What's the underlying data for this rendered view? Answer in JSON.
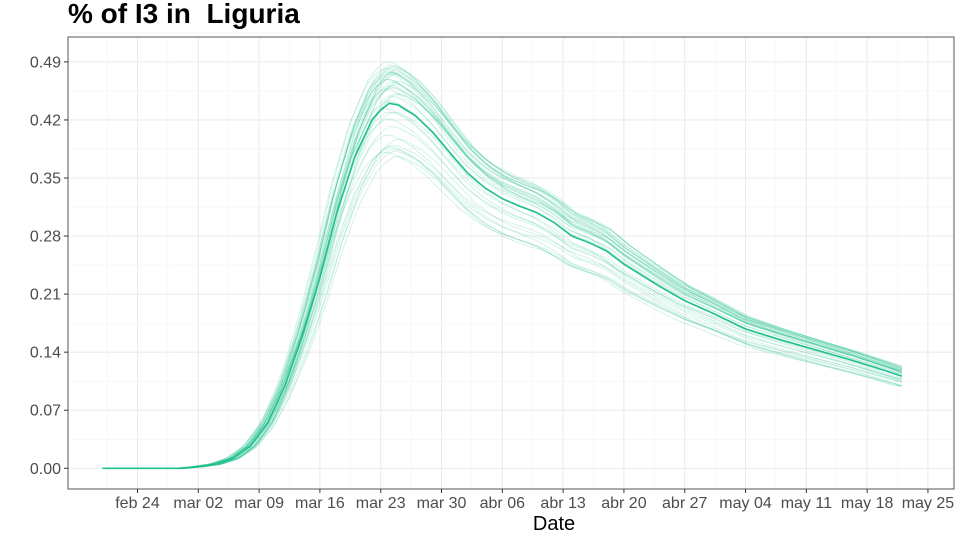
{
  "chart_data": {
    "type": "line",
    "title": "% of I3 in  Liguria",
    "xlabel": "Date",
    "ylabel": "",
    "x_tick_labels": [
      "feb 24",
      "mar 02",
      "mar 09",
      "mar 16",
      "mar 23",
      "mar 30",
      "abr 06",
      "abr 13",
      "abr 20",
      "abr 27",
      "may 04",
      "may 11",
      "may 18",
      "may 25"
    ],
    "x_tick_dates": [
      "2020-02-24",
      "2020-03-02",
      "2020-03-09",
      "2020-03-16",
      "2020-03-23",
      "2020-03-30",
      "2020-04-06",
      "2020-04-13",
      "2020-04-20",
      "2020-04-27",
      "2020-05-04",
      "2020-05-11",
      "2020-05-18",
      "2020-05-25"
    ],
    "y_tick_labels": [
      "0.00",
      "0.07",
      "0.14",
      "0.21",
      "0.28",
      "0.35",
      "0.42",
      "0.49"
    ],
    "xlim": [
      "2020-02-16",
      "2020-05-28"
    ],
    "ylim": [
      -0.025,
      0.52
    ],
    "grid": true,
    "legend": "none",
    "series_color": "#1fbf8f",
    "ensemble_runs": 40,
    "series": [
      {
        "x": [
          "2020-02-20",
          "2020-02-25",
          "2020-02-29",
          "2020-03-02",
          "2020-03-04",
          "2020-03-06",
          "2020-03-08",
          "2020-03-10",
          "2020-03-12",
          "2020-03-14",
          "2020-03-16",
          "2020-03-18",
          "2020-03-20",
          "2020-03-22",
          "2020-03-23",
          "2020-03-24",
          "2020-03-25",
          "2020-03-27",
          "2020-03-29",
          "2020-03-31",
          "2020-04-02",
          "2020-04-04",
          "2020-04-06",
          "2020-04-08",
          "2020-04-10",
          "2020-04-12",
          "2020-04-14",
          "2020-04-16",
          "2020-04-18",
          "2020-04-20",
          "2020-04-22",
          "2020-04-24",
          "2020-04-27",
          "2020-04-30",
          "2020-05-04",
          "2020-05-08",
          "2020-05-12",
          "2020-05-16",
          "2020-05-20",
          "2020-05-22"
        ],
        "y": [
          0.0,
          0.0,
          0.0,
          0.002,
          0.005,
          0.012,
          0.027,
          0.055,
          0.1,
          0.16,
          0.23,
          0.31,
          0.375,
          0.42,
          0.432,
          0.44,
          0.438,
          0.425,
          0.405,
          0.38,
          0.356,
          0.338,
          0.325,
          0.316,
          0.308,
          0.296,
          0.28,
          0.272,
          0.262,
          0.246,
          0.233,
          0.22,
          0.202,
          0.188,
          0.168,
          0.155,
          0.143,
          0.131,
          0.118,
          0.111
        ]
      }
    ]
  }
}
